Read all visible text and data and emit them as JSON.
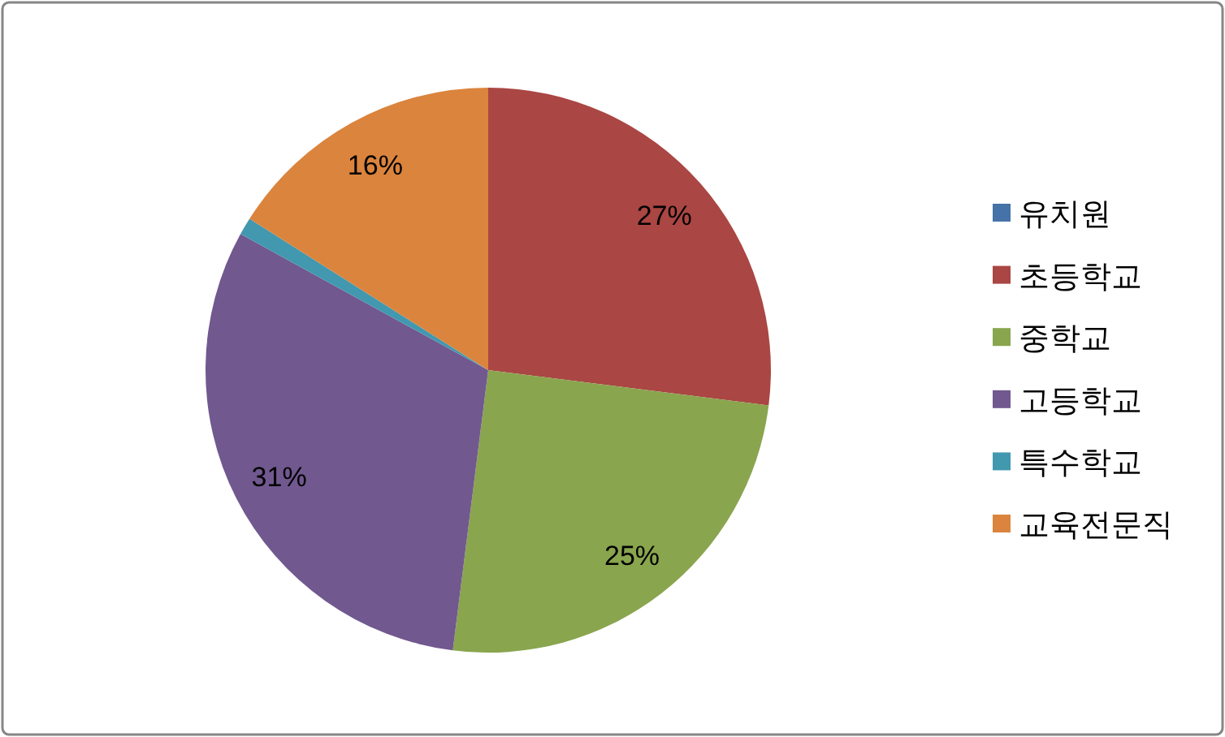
{
  "chart_data": {
    "type": "pie",
    "categories": [
      "유치원",
      "초등학교",
      "중학교",
      "고등학교",
      "특수학교",
      "교육전문직"
    ],
    "values": [
      0,
      27,
      25,
      31,
      1,
      16
    ],
    "colors": [
      "#4572a7",
      "#aa4643",
      "#89a54e",
      "#71588f",
      "#4198af",
      "#db843d"
    ],
    "value_labels": [
      null,
      "27%",
      "25%",
      "31%",
      null,
      "16%"
    ],
    "legend": "right"
  }
}
